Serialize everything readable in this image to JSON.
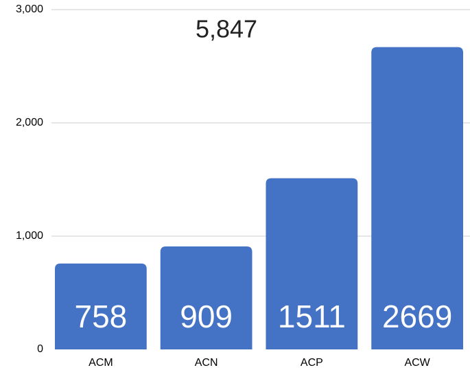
{
  "chart_data": {
    "type": "bar",
    "title": "5,847",
    "categories": [
      "ACM",
      "ACN",
      "ACP",
      "ACW"
    ],
    "values": [
      758,
      909,
      1511,
      2669
    ],
    "color": "#4472c4",
    "ylim": [
      0,
      3000
    ],
    "yticks": [
      0,
      {
        "value": 1000,
        "label": "1,000"
      },
      {
        "value": 2000,
        "label": "2,000"
      },
      {
        "value": 3000,
        "label": "3,000"
      }
    ],
    "grid": true
  }
}
